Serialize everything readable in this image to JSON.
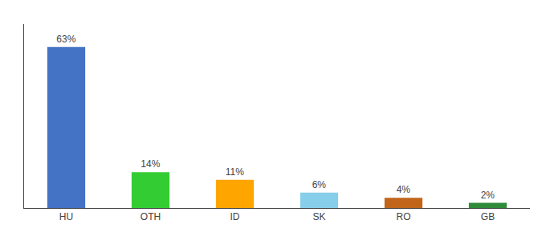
{
  "chart_data": {
    "type": "bar",
    "categories": [
      "HU",
      "OTH",
      "ID",
      "SK",
      "RO",
      "GB"
    ],
    "values": [
      63,
      14,
      11,
      6,
      4,
      2
    ],
    "value_labels": [
      "63%",
      "14%",
      "11%",
      "6%",
      "4%",
      "2%"
    ],
    "data_labels": true,
    "colors": [
      "#4472C4",
      "#33CC33",
      "#FFA500",
      "#87CEEB",
      "#C0651A",
      "#2E8B3A"
    ],
    "ylim": [
      0,
      72
    ],
    "grid": false,
    "tick_labels": "x"
  }
}
